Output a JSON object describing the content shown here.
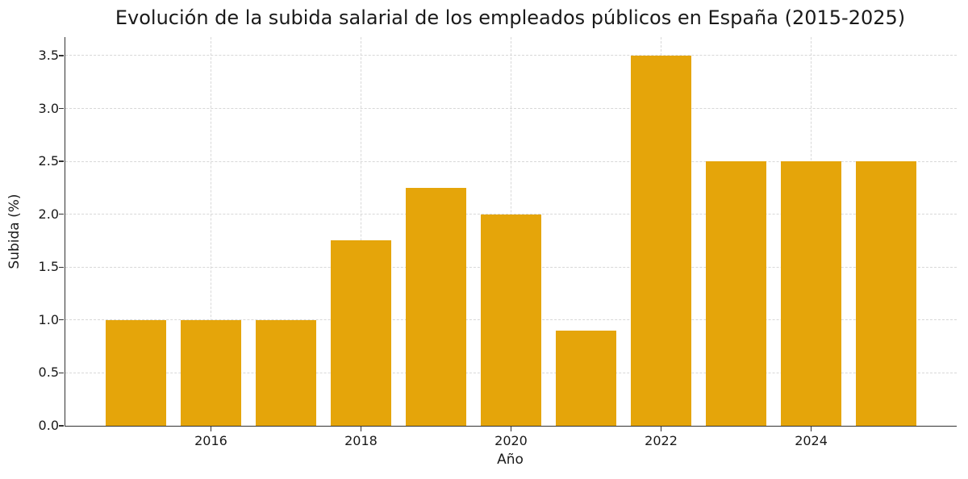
{
  "chart_data": {
    "type": "bar",
    "title": "Evolución de la subida salarial de los empleados públicos en España (2015-2025)",
    "xlabel": "Año",
    "ylabel": "Subida (%)",
    "categories": [
      2015,
      2016,
      2017,
      2018,
      2019,
      2020,
      2021,
      2022,
      2023,
      2024,
      2025
    ],
    "values": [
      1.0,
      1.0,
      1.0,
      1.75,
      2.25,
      2.0,
      0.9,
      3.5,
      2.5,
      2.5,
      2.5
    ],
    "bar_color": "#E5A50A",
    "bar_width_units": 0.8,
    "xlim": [
      2014.06,
      2025.94
    ],
    "ylim": [
      0,
      3.675
    ],
    "yticks": [
      0.0,
      0.5,
      1.0,
      1.5,
      2.0,
      2.5,
      3.0,
      3.5
    ],
    "ytick_labels": [
      "0.0",
      "0.5",
      "1.0",
      "1.5",
      "2.0",
      "2.5",
      "3.0",
      "3.5"
    ],
    "xticks": [
      2016,
      2018,
      2020,
      2022,
      2024
    ],
    "xtick_labels": [
      "2016",
      "2018",
      "2020",
      "2022",
      "2024"
    ],
    "grid": true,
    "grid_color": "#d8d8d8",
    "legend": "none"
  }
}
